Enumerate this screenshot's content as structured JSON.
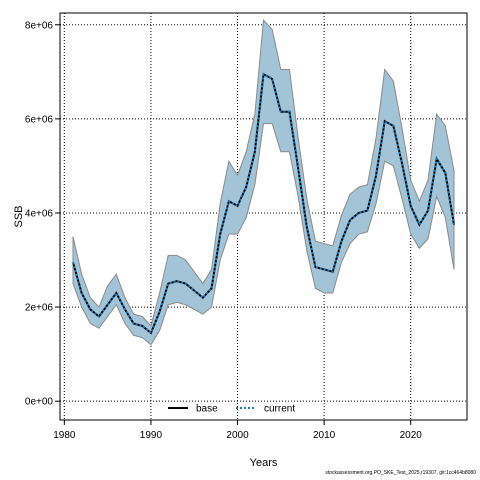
{
  "chart_data": {
    "type": "area",
    "xlabel": "Years",
    "ylabel": "SSB",
    "xlim": [
      1979.5,
      2026.5
    ],
    "ylim": [
      -400000,
      8250000
    ],
    "x_ticks": [
      1980,
      1990,
      2000,
      2010,
      2020
    ],
    "x_tick_labels": [
      "1980",
      "1990",
      "2000",
      "2010",
      "2020"
    ],
    "y_ticks": [
      0,
      2000000,
      4000000,
      6000000,
      8000000
    ],
    "y_tick_labels": [
      "0e+00",
      "2e+06",
      "4e+06",
      "6e+06",
      "8e+06"
    ],
    "grid": true,
    "legend_position": "bottom",
    "years": [
      1981,
      1982,
      1983,
      1984,
      1985,
      1986,
      1987,
      1988,
      1989,
      1990,
      1991,
      1992,
      1993,
      1994,
      1995,
      1996,
      1997,
      1998,
      1999,
      2000,
      2001,
      2002,
      2003,
      2004,
      2005,
      2006,
      2007,
      2008,
      2009,
      2010,
      2011,
      2012,
      2013,
      2014,
      2015,
      2016,
      2017,
      2018,
      2019,
      2020,
      2021,
      2022,
      2023,
      2024,
      2025
    ],
    "band": {
      "upper": [
        3500000,
        2700000,
        2200000,
        2000000,
        2450000,
        2700000,
        2200000,
        1850000,
        1800000,
        1600000,
        2300000,
        3100000,
        3100000,
        3000000,
        2750000,
        2500000,
        2800000,
        4200000,
        5100000,
        4800000,
        5300000,
        6100000,
        8100000,
        7900000,
        7050000,
        7050000,
        5600000,
        4300000,
        3400000,
        3350000,
        3300000,
        3950000,
        4400000,
        4550000,
        4600000,
        5600000,
        7050000,
        6800000,
        5800000,
        4700000,
        4250000,
        4700000,
        6100000,
        5850000,
        4900000
      ],
      "lower": [
        2500000,
        2000000,
        1650000,
        1550000,
        1800000,
        2050000,
        1650000,
        1400000,
        1350000,
        1200000,
        1500000,
        2050000,
        2100000,
        2050000,
        1950000,
        1850000,
        2000000,
        3000000,
        3550000,
        3550000,
        3900000,
        4600000,
        5900000,
        5900000,
        5300000,
        5300000,
        4350000,
        3200000,
        2400000,
        2300000,
        2300000,
        2950000,
        3350000,
        3550000,
        3600000,
        4200000,
        5100000,
        5000000,
        4300000,
        3550000,
        3250000,
        3450000,
        4350000,
        3900000,
        2800000
      ]
    },
    "series": [
      {
        "name": "base",
        "color": "#000000",
        "style": "solid",
        "values": [
          2950000,
          2300000,
          1950000,
          1800000,
          2050000,
          2300000,
          1950000,
          1650000,
          1600000,
          1450000,
          1900000,
          2500000,
          2550000,
          2500000,
          2350000,
          2200000,
          2400000,
          3550000,
          4250000,
          4150000,
          4550000,
          5300000,
          6950000,
          6850000,
          6150000,
          6150000,
          4950000,
          3700000,
          2850000,
          2800000,
          2750000,
          3400000,
          3850000,
          4000000,
          4050000,
          4800000,
          5950000,
          5850000,
          5050000,
          4150000,
          3750000,
          4050000,
          5150000,
          4850000,
          3750000
        ]
      },
      {
        "name": "current",
        "color": "#1f78b4",
        "style": "dotted",
        "values": [
          2950000,
          2300000,
          1950000,
          1800000,
          2050000,
          2300000,
          1950000,
          1650000,
          1600000,
          1450000,
          1900000,
          2500000,
          2550000,
          2500000,
          2350000,
          2200000,
          2400000,
          3550000,
          4250000,
          4150000,
          4550000,
          5300000,
          6950000,
          6850000,
          6150000,
          6150000,
          4950000,
          3700000,
          2850000,
          2800000,
          2750000,
          3400000,
          3850000,
          4000000,
          4050000,
          4800000,
          5950000,
          5850000,
          5050000,
          4150000,
          3750000,
          4050000,
          5150000,
          4850000,
          3750000
        ]
      }
    ],
    "colors": {
      "band_fill": "#a3c4d6",
      "band_stroke": "#8a8a8a",
      "grid": "#000000",
      "frame": "#000000"
    }
  },
  "footer_text": "stockassessment.org,PO_SKE_Test_2025,r19307, git:1cc464b8080"
}
